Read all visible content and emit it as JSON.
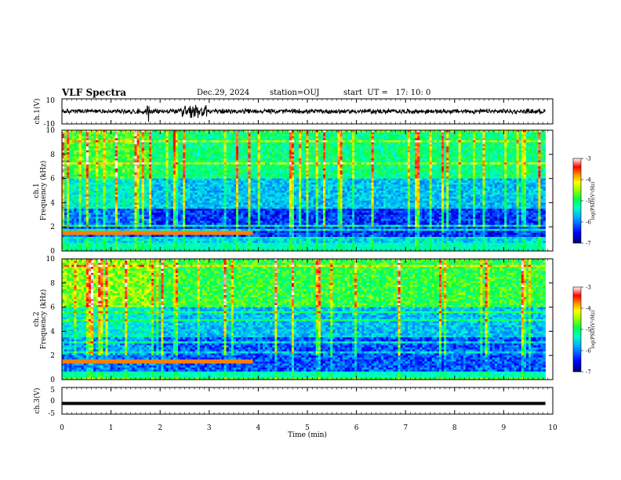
{
  "header": {
    "title": "VLF Spectra",
    "date": "Dec.29, 2024",
    "station": "station=OUJ",
    "start": "start  UT =   17: 10: 0"
  },
  "chart_data": [
    {
      "type": "line",
      "panel": "ch1-waveform",
      "ylabel": "ch.1(V)",
      "ylim": [
        -10,
        10
      ],
      "yticks": [
        10,
        -10
      ],
      "xlim": [
        0,
        10
      ],
      "color": "#000000",
      "note_values": "noise trace centred near 0 V with spikes around 1.75 and 2.5 to 2.9 min; ends at 9.85 min"
    },
    {
      "type": "heatmap",
      "panel": "ch1-spectrogram",
      "ylabel": [
        "ch.1",
        "Frequency (kHz)"
      ],
      "ylim": [
        0,
        10
      ],
      "yticks": [
        0,
        2,
        4,
        6,
        8,
        10
      ],
      "xlim": [
        0,
        10
      ],
      "data_end_min": 9.85,
      "colorbar": {
        "label": "log(PSD)(V²/Hz)",
        "range": [
          -7,
          -3
        ],
        "ticks": [
          -3,
          -4,
          -5,
          -6,
          -7
        ],
        "colors": [
          "#00007f",
          "#0000ff",
          "#00bfff",
          "#00ff80",
          "#80ff00",
          "#ffff00",
          "#ff8000",
          "#ff0000",
          "#ffffff"
        ]
      }
    },
    {
      "type": "heatmap",
      "panel": "ch2-spectrogram",
      "ylabel": [
        "ch.2",
        "Frequency (kHz)"
      ],
      "ylim": [
        0,
        10
      ],
      "yticks": [
        0,
        2,
        4,
        6,
        8,
        10
      ],
      "xlim": [
        0,
        10
      ],
      "data_end_min": 9.85,
      "colorbar": {
        "label": "log(PSD)(V²/Hz)",
        "range": [
          -7,
          -3
        ],
        "ticks": [
          -3,
          -4,
          -5,
          -6,
          -7
        ]
      }
    },
    {
      "type": "line",
      "panel": "ch3-waveform",
      "ylabel": "ch.3(V)",
      "ylim": [
        -5,
        5
      ],
      "yticks": [
        5,
        0,
        -5
      ],
      "xlim": [
        0,
        10
      ],
      "xticks": [
        0,
        1,
        2,
        3,
        4,
        5,
        6,
        7,
        8,
        9,
        10
      ],
      "xlabel": "Time (min)",
      "constant_value": -1,
      "color": "#000000"
    }
  ]
}
